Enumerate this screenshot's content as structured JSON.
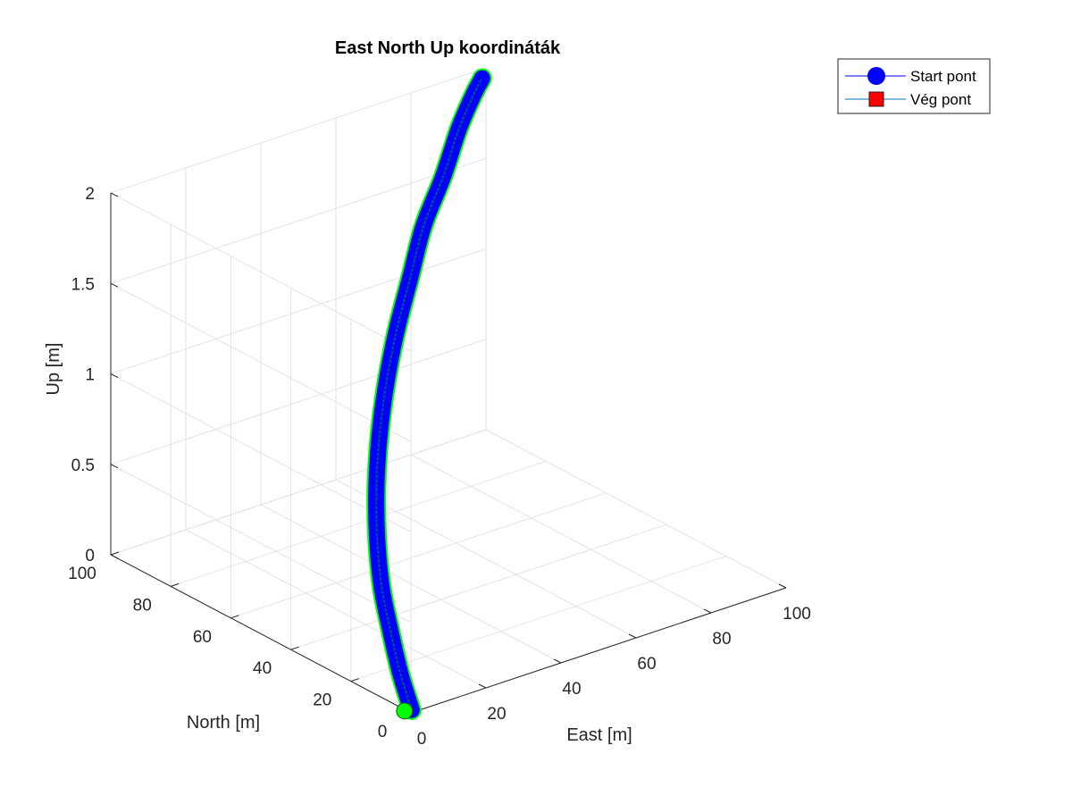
{
  "chart_data": {
    "type": "line3d",
    "title": "East North Up koordináták",
    "xlabel": "East [m]",
    "ylabel": "North [m]",
    "zlabel": "Up [m]",
    "xlim": [
      0,
      100
    ],
    "ylim": [
      0,
      100
    ],
    "zlim": [
      0,
      2
    ],
    "x_ticks": [
      "0",
      "20",
      "40",
      "60",
      "80",
      "100"
    ],
    "y_ticks": [
      "0",
      "20",
      "40",
      "60",
      "80",
      "100"
    ],
    "z_ticks": [
      "0",
      "0.5",
      "1",
      "1.5",
      "2"
    ],
    "grid": true,
    "legend_position": "top-right",
    "legend": [
      {
        "label": "Start pont",
        "marker": "circle",
        "color": "#0000ff",
        "line_color": "#0000ff"
      },
      {
        "label": "Vég pont",
        "marker": "square",
        "color": "#ff0000",
        "line_color": "#0072bd"
      }
    ],
    "series": [
      {
        "name": "trajectory",
        "color": "#0000ff",
        "edge_color": "#00ff00",
        "points": [
          {
            "x": 1,
            "y": 1,
            "z": 0
          },
          {
            "x": 2,
            "y": 6,
            "z": 0.15
          },
          {
            "x": 5,
            "y": 13,
            "z": 0.3
          },
          {
            "x": 9,
            "y": 21,
            "z": 0.45
          },
          {
            "x": 15,
            "y": 30,
            "z": 0.6
          },
          {
            "x": 22,
            "y": 39,
            "z": 0.75
          },
          {
            "x": 30,
            "y": 48,
            "z": 0.9
          },
          {
            "x": 39,
            "y": 57,
            "z": 1.05
          },
          {
            "x": 49,
            "y": 66,
            "z": 1.2
          },
          {
            "x": 59,
            "y": 74,
            "z": 1.35
          },
          {
            "x": 69,
            "y": 82,
            "z": 1.5
          },
          {
            "x": 79,
            "y": 88,
            "z": 1.65
          },
          {
            "x": 88,
            "y": 94,
            "z": 1.8
          },
          {
            "x": 95,
            "y": 98,
            "z": 1.9
          },
          {
            "x": 99,
            "y": 100,
            "z": 1.95
          }
        ]
      }
    ],
    "start_point": {
      "x": 1,
      "y": 1,
      "z": 0,
      "color": "#00ff00"
    }
  }
}
